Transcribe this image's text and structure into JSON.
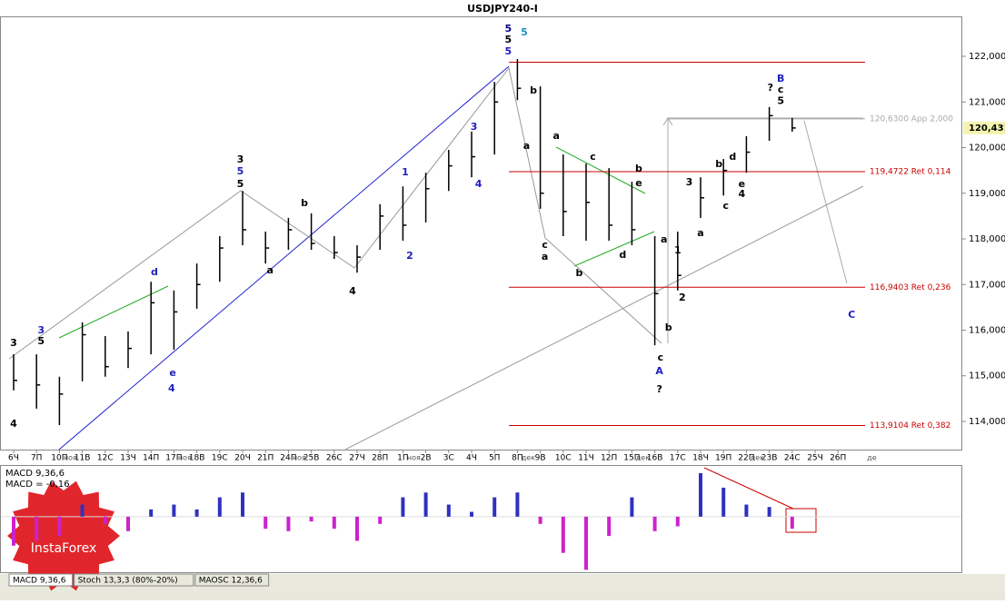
{
  "title": "USDJPY240-I",
  "chart_data": [
    {
      "type": "ohlc",
      "categories": [
        "6Ч",
        "7П",
        "10П",
        "11В",
        "12С",
        "13Ч",
        "14П",
        "17П",
        "18В",
        "19С",
        "20Ч",
        "21П",
        "24П",
        "25В",
        "26С",
        "27Ч",
        "28П",
        "1П",
        "2В",
        "3С",
        "4Ч",
        "5П",
        "8П",
        "9В",
        "10С",
        "11Ч",
        "12П",
        "15П",
        "16В",
        "17С",
        "18Ч",
        "19П",
        "22П",
        "23В",
        "24С",
        "25Ч",
        "26П"
      ],
      "high": [
        115.47,
        115.47,
        114.98,
        116.17,
        115.87,
        115.97,
        117.06,
        116.87,
        117.46,
        118.06,
        119.05,
        118.16,
        118.46,
        118.56,
        118.06,
        117.86,
        118.76,
        119.15,
        119.45,
        119.95,
        120.35,
        121.44,
        121.94,
        121.34,
        119.85,
        119.65,
        119.55,
        119.25,
        118.06,
        118.16,
        119.35,
        119.75,
        120.25,
        120.89,
        120.65,
        null,
        null
      ],
      "low": [
        114.68,
        114.28,
        113.92,
        114.88,
        114.98,
        115.17,
        115.47,
        115.57,
        116.47,
        117.06,
        117.86,
        117.46,
        117.76,
        117.76,
        117.56,
        117.26,
        117.76,
        117.96,
        118.36,
        119.05,
        119.35,
        119.85,
        121.04,
        118.66,
        118.06,
        117.96,
        117.96,
        117.86,
        115.67,
        116.87,
        118.46,
        118.95,
        119.45,
        120.15,
        120.35,
        null,
        null
      ],
      "close": [
        114.9,
        114.8,
        114.6,
        115.9,
        115.2,
        115.6,
        116.6,
        116.4,
        117.0,
        117.8,
        118.2,
        117.8,
        118.2,
        117.9,
        117.7,
        117.6,
        118.5,
        118.3,
        119.1,
        119.6,
        119.8,
        121.0,
        121.3,
        119.0,
        118.6,
        118.8,
        118.3,
        118.2,
        116.8,
        117.2,
        118.9,
        119.5,
        119.9,
        120.7,
        120.43,
        null,
        null
      ],
      "month_labels": [
        {
          "text": "ноя",
          "x": 2
        },
        {
          "text": "ноя",
          "x": 7
        },
        {
          "text": "ноя",
          "x": 12
        },
        {
          "text": "ноя",
          "x": 17
        },
        {
          "text": "дек",
          "x": 22
        },
        {
          "text": "дек",
          "x": 27
        },
        {
          "text": "дек",
          "x": 32
        },
        {
          "text": "де",
          "x": 37
        }
      ],
      "ylim": [
        113.383,
        122.876
      ],
      "yticks": [
        {
          "value": 114,
          "label": "114,000"
        },
        {
          "value": 115,
          "label": "115,000"
        },
        {
          "value": 116,
          "label": "116,000"
        },
        {
          "value": 117,
          "label": "117,000"
        },
        {
          "value": 118,
          "label": "118,000"
        },
        {
          "value": 119,
          "label": "119,000"
        },
        {
          "value": 120,
          "label": "120,000"
        },
        {
          "value": 121,
          "label": "121,000"
        },
        {
          "value": 122,
          "label": "122,000"
        }
      ],
      "last_price": {
        "value": 120.431,
        "label": "120,431"
      },
      "levels": [
        {
          "value": 121.87,
          "color": "#cc0000"
        },
        {
          "value": 120.63,
          "label": "120,6300 App 2,000",
          "color": "#aaaaaa"
        },
        {
          "value": 119.4722,
          "label": "119,4722 Ret 0,114",
          "color": "#cc0000"
        },
        {
          "value": 116.9403,
          "label": "116,9403 Ret 0,236",
          "color": "#cc0000"
        },
        {
          "value": 113.9104,
          "label": "113,9104 Ret 0,382",
          "color": "#cc0000"
        }
      ],
      "annotations": [
        {
          "text": "5",
          "x": 21.6,
          "y": 122.6,
          "color": "#000080"
        },
        {
          "text": "5",
          "x": 21.6,
          "y": 122.36,
          "color": "#000000"
        },
        {
          "text": "5",
          "x": 21.6,
          "y": 122.1,
          "color": "#1f1fbf"
        },
        {
          "text": "5",
          "x": 22.3,
          "y": 122.52,
          "color": "#1e90c8"
        },
        {
          "text": "B",
          "x": 33.5,
          "y": 121.5,
          "color": "#1f1fbf"
        },
        {
          "text": "?",
          "x": 33.05,
          "y": 121.3,
          "color": "#000000"
        },
        {
          "text": "c",
          "x": 33.5,
          "y": 121.26,
          "color": "#000000"
        },
        {
          "text": "5",
          "x": 33.5,
          "y": 121.02,
          "color": "#000000"
        },
        {
          "text": "A",
          "x": 28.2,
          "y": 115.09,
          "color": "#1f1fbf"
        },
        {
          "text": "?",
          "x": 28.2,
          "y": 114.7,
          "color": "#000000"
        },
        {
          "text": "c",
          "x": 28.25,
          "y": 115.39,
          "color": "#000000"
        },
        {
          "text": "b",
          "x": 28.6,
          "y": 116.05,
          "color": "#000000"
        },
        {
          "text": "C",
          "x": 36.6,
          "y": 116.33,
          "color": "#1f1fbf"
        },
        {
          "text": "3",
          "x": 9.9,
          "y": 119.73,
          "color": "#000000"
        },
        {
          "text": "5",
          "x": 9.9,
          "y": 119.47,
          "color": "#1f1fbf"
        },
        {
          "text": "5",
          "x": 9.9,
          "y": 119.19,
          "color": "#000000"
        },
        {
          "text": "4",
          "x": 14.8,
          "y": 116.85,
          "color": "#000000"
        },
        {
          "text": "a",
          "x": 11.2,
          "y": 117.3,
          "color": "#000000"
        },
        {
          "text": "b",
          "x": 12.7,
          "y": 118.78,
          "color": "#000000"
        },
        {
          "text": "1",
          "x": 17.1,
          "y": 119.45,
          "color": "#1f1fbf"
        },
        {
          "text": "2",
          "x": 17.3,
          "y": 117.62,
          "color": "#1f1fbf"
        },
        {
          "text": "3",
          "x": 20.1,
          "y": 120.45,
          "color": "#1f1fbf"
        },
        {
          "text": "4",
          "x": 20.3,
          "y": 119.19,
          "color": "#1f1fbf"
        },
        {
          "text": "4",
          "x": 6.9,
          "y": 114.72,
          "color": "#1f1fbf"
        },
        {
          "text": "e",
          "x": 6.95,
          "y": 115.05,
          "color": "#1f1fbf"
        },
        {
          "text": "d",
          "x": 6.15,
          "y": 117.26,
          "color": "#1f1fbf"
        },
        {
          "text": "3",
          "x": 1.2,
          "y": 115.99,
          "color": "#1f1fbf"
        },
        {
          "text": "5",
          "x": 1.2,
          "y": 115.75,
          "color": "#000000"
        },
        {
          "text": "3",
          "x": 0,
          "y": 115.71,
          "color": "#000000"
        },
        {
          "text": "4",
          "x": 0,
          "y": 113.94,
          "color": "#000000"
        },
        {
          "text": "a",
          "x": 23.2,
          "y": 117.6,
          "color": "#000000"
        },
        {
          "text": "c",
          "x": 23.2,
          "y": 117.86,
          "color": "#000000"
        },
        {
          "text": "a",
          "x": 22.4,
          "y": 120.03,
          "color": "#000000"
        },
        {
          "text": "b",
          "x": 22.7,
          "y": 121.24,
          "color": "#000000"
        },
        {
          "text": "a",
          "x": 23.7,
          "y": 120.25,
          "color": "#000000"
        },
        {
          "text": "c",
          "x": 25.3,
          "y": 119.79,
          "color": "#000000"
        },
        {
          "text": "b",
          "x": 27.3,
          "y": 119.53,
          "color": "#000000"
        },
        {
          "text": "e",
          "x": 27.3,
          "y": 119.21,
          "color": "#000000"
        },
        {
          "text": "d",
          "x": 26.6,
          "y": 117.64,
          "color": "#000000"
        },
        {
          "text": "b",
          "x": 24.7,
          "y": 117.24,
          "color": "#000000"
        },
        {
          "text": "a",
          "x": 28.4,
          "y": 117.98,
          "color": "#000000"
        },
        {
          "text": "1",
          "x": 29.0,
          "y": 117.74,
          "color": "#000000"
        },
        {
          "text": "2",
          "x": 29.2,
          "y": 116.71,
          "color": "#000000"
        },
        {
          "text": "3",
          "x": 29.5,
          "y": 119.23,
          "color": "#000000"
        },
        {
          "text": "a",
          "x": 30.0,
          "y": 118.12,
          "color": "#000000"
        },
        {
          "text": "b",
          "x": 30.8,
          "y": 119.63,
          "color": "#000000"
        },
        {
          "text": "c",
          "x": 31.1,
          "y": 118.72,
          "color": "#000000"
        },
        {
          "text": "d",
          "x": 31.4,
          "y": 119.79,
          "color": "#000000"
        },
        {
          "text": "e",
          "x": 31.8,
          "y": 119.19,
          "color": "#000000"
        },
        {
          "text": "4",
          "x": 31.8,
          "y": 118.98,
          "color": "#000000"
        }
      ]
    },
    {
      "type": "bar",
      "title": "MACD 9,36,6",
      "subtitle": "MACD = -0,16",
      "values": [
        -1.2,
        -1.0,
        -0.8,
        0.5,
        -0.3,
        -0.6,
        0.3,
        0.5,
        0.3,
        0.8,
        1.0,
        -0.5,
        -0.6,
        -0.2,
        -0.5,
        -1.0,
        -0.3,
        0.8,
        1.0,
        0.5,
        0.2,
        0.8,
        1.0,
        -0.3,
        -1.5,
        -2.2,
        -0.8,
        0.8,
        -0.6,
        -0.4,
        1.8,
        1.2,
        0.5,
        0.4,
        -0.5,
        null,
        null
      ],
      "colors": {
        "positive": "#3030c0",
        "negative": "#cc22cc"
      },
      "ylim": [
        -2.3,
        2.1
      ]
    }
  ],
  "tabs": [
    "MACD 9,36,6",
    "Stoch 13,3,3 (80%-20%)",
    "MAOSC 12,36,6"
  ],
  "logo": "InstaForex"
}
